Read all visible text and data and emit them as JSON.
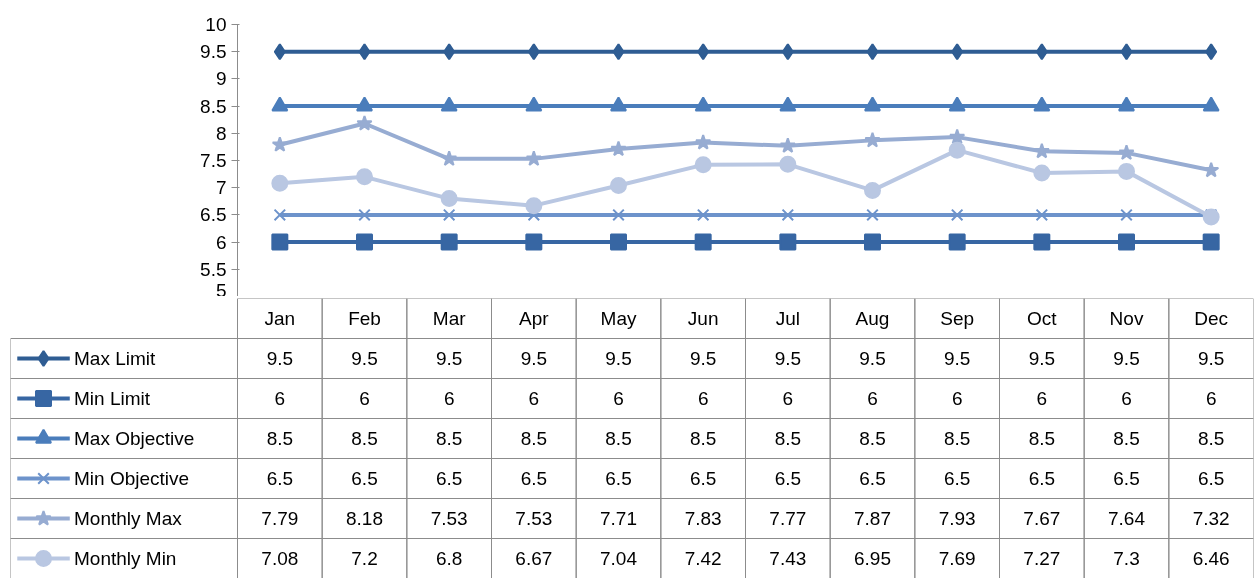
{
  "chart_data": {
    "type": "line",
    "categories": [
      "Jan",
      "Feb",
      "Mar",
      "Apr",
      "May",
      "Jun",
      "Jul",
      "Aug",
      "Sep",
      "Oct",
      "Nov",
      "Dec"
    ],
    "ylim": [
      5,
      10
    ],
    "yticks": [
      5,
      5.5,
      6,
      6.5,
      7,
      7.5,
      8,
      8.5,
      9,
      9.5,
      10
    ],
    "grid": false,
    "legend": "bottom left",
    "data_labels": true,
    "tick_labels": "y",
    "line_style": "solid",
    "series": [
      {
        "name": "Max Limit",
        "color": "#2f5d93",
        "marker": "diamond",
        "values": [
          9.5,
          9.5,
          9.5,
          9.5,
          9.5,
          9.5,
          9.5,
          9.5,
          9.5,
          9.5,
          9.5,
          9.5
        ]
      },
      {
        "name": "Min Limit",
        "color": "#3766a3",
        "marker": "square",
        "values": [
          6,
          6,
          6,
          6,
          6,
          6,
          6,
          6,
          6,
          6,
          6,
          6
        ]
      },
      {
        "name": "Max Objective",
        "color": "#4a7dbb",
        "marker": "triangle",
        "values": [
          8.5,
          8.5,
          8.5,
          8.5,
          8.5,
          8.5,
          8.5,
          8.5,
          8.5,
          8.5,
          8.5,
          8.5
        ]
      },
      {
        "name": "Min Objective",
        "color": "#6d93cb",
        "marker": "cross",
        "values": [
          6.5,
          6.5,
          6.5,
          6.5,
          6.5,
          6.5,
          6.5,
          6.5,
          6.5,
          6.5,
          6.5,
          6.5
        ]
      },
      {
        "name": "Monthly Max",
        "color": "#97acd2",
        "marker": "star",
        "values": [
          7.79,
          8.18,
          7.53,
          7.53,
          7.71,
          7.83,
          7.77,
          7.87,
          7.93,
          7.67,
          7.64,
          7.32
        ]
      },
      {
        "name": "Monthly Min",
        "color": "#b9c7e2",
        "marker": "circle",
        "values": [
          7.08,
          7.2,
          6.8,
          6.67,
          7.04,
          7.42,
          7.43,
          6.95,
          7.69,
          7.27,
          7.3,
          6.46
        ]
      }
    ]
  }
}
